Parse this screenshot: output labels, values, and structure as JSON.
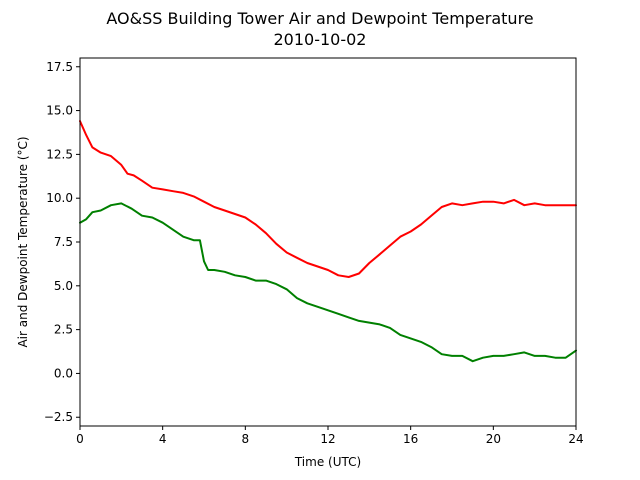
{
  "chart_data": {
    "type": "line",
    "title": "AO&SS Building Tower Air and Dewpoint Temperature",
    "subtitle": "2010-10-02",
    "xlabel": "Time (UTC)",
    "ylabel": "Air and Dewpoint Temperature (°C)",
    "xlim": [
      0,
      24
    ],
    "ylim": [
      -3.0,
      18.0
    ],
    "xticks": [
      0,
      4,
      8,
      12,
      16,
      20,
      24
    ],
    "xtick_labels": [
      "0",
      "4",
      "8",
      "12",
      "16",
      "20",
      "24"
    ],
    "yticks": [
      -2.5,
      0.0,
      2.5,
      5.0,
      7.5,
      10.0,
      12.5,
      15.0,
      17.5
    ],
    "ytick_labels": [
      "−2.5",
      "0.0",
      "2.5",
      "5.0",
      "7.5",
      "10.0",
      "12.5",
      "15.0",
      "17.5"
    ],
    "grid": false,
    "series": [
      {
        "color": "#ff0000",
        "x": [
          0,
          0.3,
          0.6,
          1.0,
          1.5,
          2.0,
          2.3,
          2.6,
          3.0,
          3.5,
          4.0,
          4.5,
          5.0,
          5.5,
          6.0,
          6.5,
          7.0,
          7.5,
          8.0,
          8.5,
          9.0,
          9.5,
          10.0,
          10.5,
          11.0,
          11.5,
          12.0,
          12.5,
          13.0,
          13.5,
          14.0,
          14.5,
          15.0,
          15.5,
          16.0,
          16.5,
          17.0,
          17.5,
          18.0,
          18.5,
          19.0,
          19.5,
          20.0,
          20.5,
          21.0,
          21.5,
          22.0,
          22.5,
          23.0,
          23.5,
          24.0
        ],
        "y": [
          14.4,
          13.6,
          12.9,
          12.6,
          12.4,
          11.9,
          11.4,
          11.3,
          11.0,
          10.6,
          10.5,
          10.4,
          10.3,
          10.1,
          9.8,
          9.5,
          9.3,
          9.1,
          8.9,
          8.5,
          8.0,
          7.4,
          6.9,
          6.6,
          6.3,
          6.1,
          5.9,
          5.6,
          5.5,
          5.7,
          6.3,
          6.8,
          7.3,
          7.8,
          8.1,
          8.5,
          9.0,
          9.5,
          9.7,
          9.6,
          9.7,
          9.8,
          9.8,
          9.7,
          9.9,
          9.6,
          9.7,
          9.6,
          9.6,
          9.6,
          9.6
        ]
      },
      {
        "color": "#008000",
        "x": [
          0,
          0.3,
          0.6,
          1.0,
          1.5,
          2.0,
          2.5,
          3.0,
          3.5,
          4.0,
          4.5,
          5.0,
          5.5,
          5.8,
          6.0,
          6.2,
          6.5,
          7.0,
          7.5,
          8.0,
          8.5,
          9.0,
          9.5,
          10.0,
          10.5,
          11.0,
          11.5,
          12.0,
          12.5,
          13.0,
          13.5,
          14.0,
          14.5,
          15.0,
          15.5,
          16.0,
          16.5,
          17.0,
          17.5,
          18.0,
          18.5,
          19.0,
          19.5,
          20.0,
          20.5,
          21.0,
          21.5,
          22.0,
          22.5,
          23.0,
          23.5,
          24.0
        ],
        "y": [
          8.6,
          8.8,
          9.2,
          9.3,
          9.6,
          9.7,
          9.4,
          9.0,
          8.9,
          8.6,
          8.2,
          7.8,
          7.6,
          7.6,
          6.4,
          5.9,
          5.9,
          5.8,
          5.6,
          5.5,
          5.3,
          5.3,
          5.1,
          4.8,
          4.3,
          4.0,
          3.8,
          3.6,
          3.4,
          3.2,
          3.0,
          2.9,
          2.8,
          2.6,
          2.2,
          2.0,
          1.8,
          1.5,
          1.1,
          1.0,
          1.0,
          0.7,
          0.9,
          1.0,
          1.0,
          1.1,
          1.2,
          1.0,
          1.0,
          0.9,
          0.9,
          1.3
        ]
      }
    ]
  }
}
